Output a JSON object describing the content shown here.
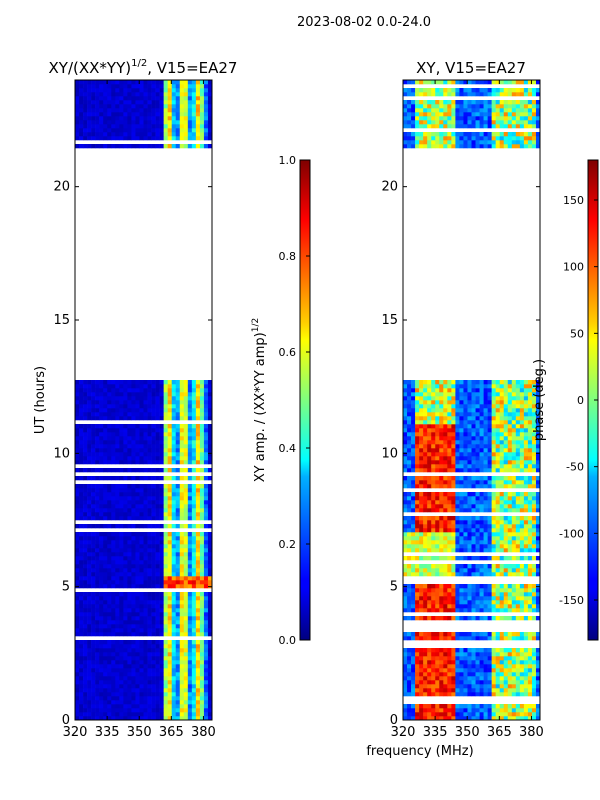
{
  "suptitle": "2023-08-02 0.0-24.0",
  "xlabel": "frequency (MHz)",
  "chart_data": [
    {
      "type": "heatmap",
      "title": "XY/(XX*YY)^1/2, V15=EA27",
      "title_main": "XY/(XX*YY)",
      "title_exp": "1/2",
      "title_tail": ", V15=EA27",
      "ylabel": "UT (hours)",
      "x_ticks": [
        "320",
        "335",
        "350",
        "365",
        "380"
      ],
      "x_tick_values": [
        320,
        335,
        350,
        365,
        380
      ],
      "xlim": [
        320,
        384
      ],
      "y_ticks": [
        "0",
        "5",
        "10",
        "15",
        "20"
      ],
      "y_tick_values": [
        0,
        5,
        10,
        15,
        20
      ],
      "ylim": [
        0,
        24
      ],
      "data_extent_hours": [
        0,
        12.8,
        21.4,
        24
      ],
      "colorbar": {
        "label": "XY amp. / (XX*YY amp)^1/2",
        "label_main": "XY amp. / (XX*YY amp)",
        "label_exp": "1/2",
        "ticks": [
          "0.0",
          "0.2",
          "0.4",
          "0.6",
          "0.8",
          "1.0"
        ],
        "tick_values": [
          0.0,
          0.2,
          0.4,
          0.6,
          0.8,
          1.0
        ],
        "range": [
          0.0,
          1.0
        ]
      }
    },
    {
      "type": "heatmap",
      "title": "XY, V15=EA27",
      "x_ticks": [
        "320",
        "335",
        "350",
        "365",
        "380"
      ],
      "x_tick_values": [
        320,
        335,
        350,
        365,
        380
      ],
      "xlim": [
        320,
        384
      ],
      "y_ticks": [
        "0",
        "5",
        "10",
        "15",
        "20"
      ],
      "y_tick_values": [
        0,
        5,
        10,
        15,
        20
      ],
      "ylim": [
        0,
        24
      ],
      "data_extent_hours": [
        0,
        12.8,
        21.4,
        24
      ],
      "colorbar": {
        "label": "phase (deg.)",
        "ticks": [
          "-150",
          "-100",
          "-50",
          "0",
          "50",
          "100",
          "150"
        ],
        "tick_values": [
          -150,
          -100,
          -50,
          0,
          50,
          100,
          150
        ],
        "range": [
          -180,
          180
        ]
      }
    }
  ],
  "colors": {
    "jet_dark_blue": "#00007f",
    "jet_blue": "#0000ff",
    "jet_cyan": "#00ffff",
    "jet_yellow": "#ffff00",
    "jet_red": "#ff0000",
    "jet_dark_red": "#7f0000"
  }
}
